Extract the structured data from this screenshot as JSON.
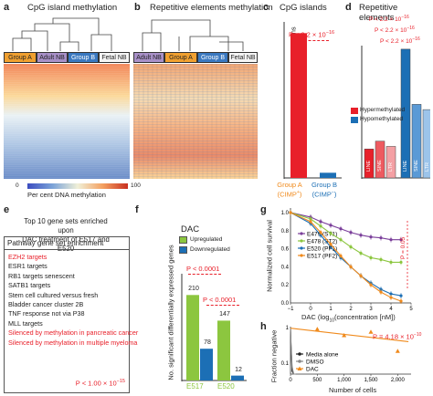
{
  "panels": {
    "a": {
      "label": "a",
      "title": "CpG island methylation",
      "groups": [
        {
          "name": "Group A",
          "color": "#f0a030"
        },
        {
          "name": "Adult NB",
          "color": "#a890c8"
        },
        {
          "name": "Group B",
          "color": "#3a78c0"
        },
        {
          "name": "Fetal NB",
          "color": "#f4f4f4"
        }
      ],
      "colorbar": {
        "min": "0",
        "max": "100",
        "label": "Per cent DNA methylation"
      }
    },
    "b": {
      "label": "b",
      "title": "Repetitive elements methylation",
      "groups": [
        {
          "name": "Adult NB",
          "color": "#a890c8"
        },
        {
          "name": "Group A",
          "color": "#f0a030"
        },
        {
          "name": "Group B",
          "color": "#3a78c0"
        },
        {
          "name": "Fetal NB",
          "color": "#f4f4f4"
        }
      ]
    },
    "c": {
      "label": "c",
      "title": "CpG islands",
      "ylabel": "Proportion of differentially methylated regions",
      "pvalue": "P < 2.2 × 10",
      "pexp": "−16",
      "xcat1": [
        "Group A",
        "(CIMP",
        "+",
        ")"
      ],
      "xcat2": [
        "Group B",
        "(CIMP",
        "−",
        ")"
      ]
    },
    "d": {
      "label": "d",
      "title": "Repetitive elements",
      "pvalue": "P < 2.2 × 10",
      "pexp": "−16",
      "bar_labels": [
        "LINE",
        "SINE",
        "LTR",
        "LINE",
        "SINE",
        "LTR"
      ],
      "legend": [
        {
          "label": "Hypermethylated",
          "color": "#e8202a"
        },
        {
          "label": "Hypomethylated",
          "color": "#1c6fb5"
        }
      ]
    },
    "e": {
      "label": "e",
      "title_lines": [
        "Top 10 gene sets enriched upon",
        "DAC treatment  of E517 and E520"
      ],
      "header": "Pathway gene set enrichment",
      "items": [
        {
          "text": "EZH2 targets",
          "red": true
        },
        {
          "text": "ESR1 targets",
          "red": false
        },
        {
          "text": "RB1 targets senescent",
          "red": false
        },
        {
          "text": "SATB1 targets",
          "red": false
        },
        {
          "text": "Stem cell cultured versus fresh",
          "red": false
        },
        {
          "text": "Bladder cancer cluster 2B",
          "red": false
        },
        {
          "text": "TNF response not via P38",
          "red": false
        },
        {
          "text": "MLL targets",
          "red": false
        },
        {
          "text": "Silenced by methylation in pancreatic cancer",
          "red": true
        },
        {
          "text": "Silenced by methylation in multiple myeloma",
          "red": true
        }
      ],
      "pvalue": "P < 1.00 × 10",
      "pexp": "−15"
    },
    "f": {
      "label": "f",
      "title": "DAC",
      "ylabel": "No. significant differentially expressed genes",
      "legend": [
        {
          "label": "Upregulated",
          "color": "#8cc63f"
        },
        {
          "label": "Downregulated",
          "color": "#1c6fb5"
        }
      ],
      "pvalue": "P < 0.0001"
    },
    "g": {
      "label": "g",
      "ylabel": "Normalized cell survival",
      "xlabel_pre": "DAC (log",
      "xlabel_sub": "10",
      "xlabel_post": "(concentration [nM])",
      "pvalue": "P = 0.05",
      "legend": [
        "E479 (ST1)",
        "E478 (ST2)",
        "E520 (PF1)",
        "E517 (PF2)"
      ]
    },
    "h": {
      "label": "h",
      "ylabel": "Fraction negative",
      "xlabel": "Number of cells",
      "pvalue_pre": "P = 4.18 × 10",
      "pexp": "−10",
      "legend": [
        "Media alone",
        "DMSO",
        "DAC"
      ]
    }
  },
  "colors": {
    "red": "#e8202a",
    "blue": "#1c6fb5",
    "green": "#8cc63f",
    "orange": "#f08a1c",
    "purple": "#7a3f9a"
  },
  "chart_data": [
    {
      "type": "bar",
      "panel": "c",
      "categories": [
        "Group A (CIMP+)",
        "Group B (CIMP−)"
      ],
      "values": [
        0.084,
        0.003
      ],
      "colors": [
        "#e8202a",
        "#1c6fb5"
      ],
      "ylim": [
        0,
        0.09
      ]
    },
    {
      "type": "bar",
      "panel": "d",
      "categories": [
        "LINE",
        "SINE",
        "LTR",
        "LINE",
        "SINE",
        "LTR"
      ],
      "series": [
        {
          "name": "Hypermethylated",
          "values": [
            0.22,
            0.28,
            0.24,
            0.0,
            0.0,
            0.0
          ]
        },
        {
          "name": "Hypomethylated",
          "values": [
            0.0,
            0.0,
            0.0,
            0.98,
            0.56,
            0.52
          ]
        }
      ],
      "ylim": [
        0,
        1.0
      ]
    },
    {
      "type": "bar",
      "panel": "f",
      "categories": [
        "E517",
        "E520"
      ],
      "series": [
        {
          "name": "Upregulated",
          "values": [
            210,
            147
          ]
        },
        {
          "name": "Downregulated",
          "values": [
            78,
            12
          ]
        }
      ],
      "ylim": [
        0,
        260
      ]
    },
    {
      "type": "line",
      "panel": "g",
      "x": [
        -1,
        0,
        0.5,
        1,
        1.5,
        2,
        2.5,
        3,
        3.5,
        4,
        4.5
      ],
      "xticks": [
        "−1",
        "0",
        "1",
        "2",
        "3",
        "4",
        "5"
      ],
      "yticks": [
        "0.0",
        "0.2",
        "0.4",
        "0.6",
        "0.8",
        "1.0"
      ],
      "xlim": [
        -1,
        5
      ],
      "ylim": [
        0,
        1.05
      ],
      "series": [
        {
          "name": "E479 (ST1)",
          "color": "#7a3f9a",
          "values": [
            1.0,
            0.95,
            0.9,
            0.86,
            0.82,
            0.78,
            0.75,
            0.73,
            0.72,
            0.7,
            0.7
          ]
        },
        {
          "name": "E478 (ST2)",
          "color": "#8cc63f",
          "values": [
            1.0,
            0.93,
            0.85,
            0.77,
            0.7,
            0.62,
            0.55,
            0.5,
            0.48,
            0.45,
            0.45
          ]
        },
        {
          "name": "E520 (PF1)",
          "color": "#1c6fb5",
          "values": [
            1.0,
            0.88,
            0.75,
            0.62,
            0.5,
            0.4,
            0.3,
            0.22,
            0.15,
            0.1,
            0.08
          ]
        },
        {
          "name": "E517 (PF2)",
          "color": "#f08a1c",
          "values": [
            1.0,
            0.9,
            0.78,
            0.65,
            0.52,
            0.4,
            0.3,
            0.2,
            0.12,
            0.06,
            0.02
          ]
        }
      ]
    },
    {
      "type": "line",
      "panel": "h",
      "xticks": [
        "0",
        "500",
        "1,000",
        "1,500",
        "2,000"
      ],
      "yticks": [
        "0.1",
        "1"
      ],
      "xlim": [
        0,
        2250
      ],
      "ylog": true,
      "ylim": [
        0.05,
        1.05
      ],
      "series": [
        {
          "name": "Media alone",
          "color": "#222222",
          "x": [
            0,
            10,
            30,
            60,
            100
          ],
          "values": [
            1.0,
            0.3,
            0.06,
            0.05,
            0.05
          ]
        },
        {
          "name": "DMSO",
          "color": "#888888",
          "x": [
            0,
            10,
            30,
            60,
            100
          ],
          "values": [
            1.0,
            0.35,
            0.08,
            0.05,
            0.05
          ]
        },
        {
          "name": "DAC",
          "color": "#f08a1c",
          "x": [
            0,
            2200
          ],
          "values": [
            0.95,
            0.4
          ]
        },
        {
          "name": "DAC points",
          "color": "#f08a1c",
          "x": [
            500,
            1000,
            1500,
            2000
          ],
          "values": [
            0.9,
            0.6,
            0.75,
            0.22
          ]
        }
      ]
    }
  ]
}
